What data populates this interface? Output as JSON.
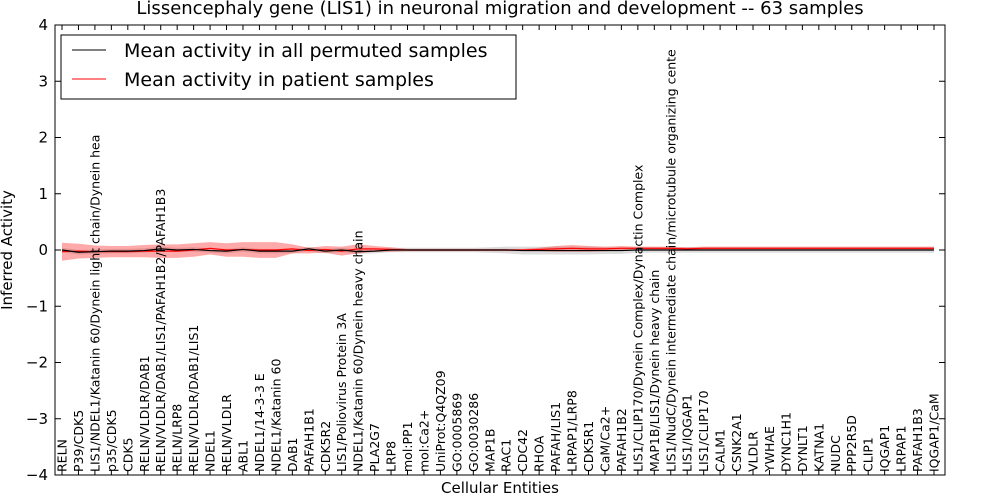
{
  "chart_data": {
    "type": "line",
    "title": "Lissencephaly gene (LIS1) in neuronal migration and development -- 63 samples",
    "xlabel": "Cellular Entities",
    "ylabel": "Inferred Activity",
    "ylim": [
      -4,
      4
    ],
    "yticks": [
      4,
      3,
      2,
      1,
      0,
      -1,
      -2,
      -3,
      -4
    ],
    "ytick_labels": [
      "4",
      "3",
      "2",
      "1",
      "0",
      "−1",
      "−2",
      "−3",
      "−4"
    ],
    "grid": false,
    "legend_position": "top-left",
    "categories": [
      "RELN",
      "P39/CDK5",
      "LIS1/NDEL1/Katanin 60/Dynein light chain/Dynein hea",
      "p35/CDK5",
      "CDK5",
      "RELN/VLDLR/DAB1",
      "RELN/VLDLR/DAB1/LIS1/PAFAH1B2/PAFAH1B3",
      "RELN/LRP8",
      "RELN/VLDLR/DAB1/LIS1",
      "NDEL1",
      "RELN/VLDLR",
      "ABL1",
      "NDEL1/14-3-3 E",
      "NDEL1/Katanin 60",
      "DAB1",
      "PAFAH1B1",
      "CDK5R2",
      "LIS1/Poliovirus Protein 3A",
      "NDEL1/Katanin 60/Dynein heavy chain",
      "PLA2G7",
      "LRP8",
      "mol:PP1",
      "mol:Ca2+",
      "UniProt:Q4QZ09",
      "GO:0005869",
      "GO:0030286",
      "MAP1B",
      "RAC1",
      "CDC42",
      "RHOA",
      "PAFAH/LIS1",
      "LRPAP1/LRP8",
      "CDK5R1",
      "CaM/Ca2+",
      "PAFAH1B2",
      "LIS1/CLIP170/Dynein Complex/Dynactin Complex",
      "MAP1B/LIS1/Dynein heavy chain",
      "LIS1/NudC/Dynein intermediate chain/microtubule organizing cente",
      "LIS1/IQGAP1",
      "LIS1/CLIP170",
      "CALM1",
      "CSNK2A1",
      "VLDLR",
      "YWHAE",
      "DYNC1H1",
      "DYNLT1",
      "KATNA1",
      "NUDC",
      "PPP2R5D",
      "CLIP1",
      "IQGAP1",
      "LRPAP1",
      "PAFAH1B3",
      "IQGAP1/CaM"
    ],
    "series": [
      {
        "name": "Mean activity in all permuted samples",
        "color": "#000000",
        "values": [
          0.0,
          -0.04,
          -0.03,
          -0.02,
          -0.02,
          -0.01,
          0.02,
          0.0,
          0.01,
          -0.01,
          -0.02,
          0.01,
          -0.02,
          -0.02,
          -0.02,
          0.02,
          -0.02,
          0.0,
          -0.03,
          -0.02,
          0.0,
          0.0,
          0.0,
          0.0,
          0.0,
          0.0,
          0.0,
          0.0,
          -0.01,
          -0.01,
          -0.01,
          -0.01,
          -0.01,
          -0.01,
          -0.01,
          0.0,
          0.0,
          0.0,
          0.0,
          0.0,
          0.0,
          0.0,
          0.0,
          0.0,
          0.0,
          0.0,
          0.0,
          0.0,
          0.0,
          0.0,
          0.0,
          0.0,
          0.0,
          0.0
        ],
        "band": [
          0.04,
          0.04,
          0.04,
          0.04,
          0.04,
          0.04,
          0.04,
          0.04,
          0.04,
          0.04,
          0.04,
          0.04,
          0.04,
          0.04,
          0.04,
          0.04,
          0.04,
          0.04,
          0.04,
          0.04,
          0.04,
          0.04,
          0.04,
          0.04,
          0.04,
          0.04,
          0.05,
          0.06,
          0.07,
          0.07,
          0.07,
          0.07,
          0.07,
          0.06,
          0.06,
          0.05,
          0.05,
          0.05,
          0.05,
          0.05,
          0.05,
          0.05,
          0.05,
          0.05,
          0.05,
          0.05,
          0.05,
          0.05,
          0.05,
          0.05,
          0.05,
          0.05,
          0.05,
          0.05
        ]
      },
      {
        "name": "Mean activity in patient samples",
        "color": "#ff0000",
        "values": [
          -0.03,
          -0.02,
          -0.03,
          -0.03,
          -0.03,
          -0.02,
          -0.02,
          -0.02,
          0.0,
          0.03,
          0.0,
          0.01,
          0.0,
          0.0,
          0.02,
          -0.01,
          0.01,
          -0.02,
          0.02,
          0.02,
          0.01,
          0.0,
          0.0,
          0.0,
          0.0,
          0.0,
          0.0,
          0.0,
          0.0,
          0.01,
          0.02,
          0.03,
          0.02,
          0.02,
          0.03,
          0.03,
          0.03,
          0.03,
          0.02,
          0.03,
          0.03,
          0.03,
          0.03,
          0.03,
          0.03,
          0.03,
          0.03,
          0.03,
          0.03,
          0.03,
          0.03,
          0.03,
          0.03,
          0.03
        ],
        "band": [
          0.16,
          0.13,
          0.11,
          0.1,
          0.1,
          0.11,
          0.12,
          0.12,
          0.12,
          0.11,
          0.12,
          0.13,
          0.14,
          0.14,
          0.08,
          0.05,
          0.06,
          0.08,
          0.08,
          0.05,
          0.04,
          0.02,
          0.02,
          0.02,
          0.02,
          0.02,
          0.02,
          0.02,
          0.02,
          0.03,
          0.05,
          0.06,
          0.05,
          0.04,
          0.04,
          0.03,
          0.03,
          0.03,
          0.03,
          0.03,
          0.03,
          0.03,
          0.03,
          0.03,
          0.03,
          0.03,
          0.03,
          0.03,
          0.03,
          0.03,
          0.03,
          0.03,
          0.03,
          0.03
        ]
      }
    ]
  }
}
